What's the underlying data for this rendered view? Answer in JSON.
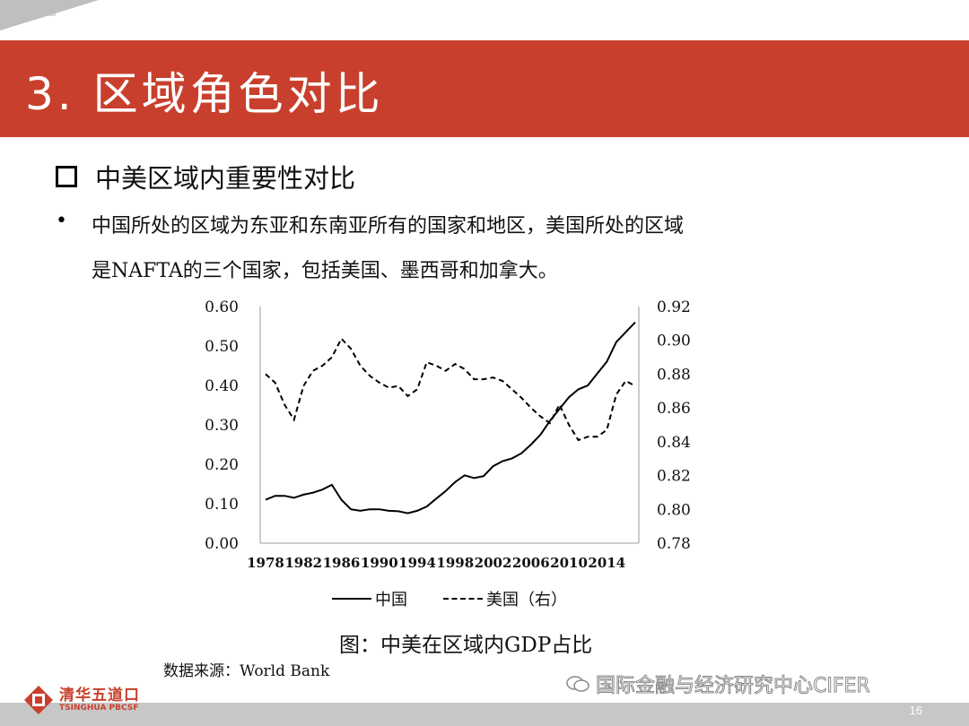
{
  "slide": {
    "title": "3. 区域角色对比",
    "heading": "中美区域内重要性对比",
    "bullet_line1": "中国所处的区域为东亚和东南亚所有的国家和地区，美国所处的区域",
    "bullet_line2": "是NAFTA的三个国家，包括美国、墨西哥和加拿大。",
    "caption": "图：中美在区域内GDP占比",
    "source": "数据来源：World Bank",
    "watermark": "国际金融与经济研究中心CIFER",
    "page_number": "16",
    "logo_cn": "清华五道口",
    "logo_en": "TSINGHUA PBCSF",
    "colors": {
      "title_bar": "#c8402d",
      "footer": "#c7c7c7"
    }
  },
  "chart_data": {
    "type": "line",
    "title": "",
    "xlabel": "",
    "ylabel": "",
    "x_ticks": [
      "1978",
      "1982",
      "1986",
      "1990",
      "1994",
      "1998",
      "2002",
      "2006",
      "2010",
      "2014"
    ],
    "y_left": {
      "ticks": [
        "0.00",
        "0.10",
        "0.20",
        "0.30",
        "0.40",
        "0.50",
        "0.60"
      ],
      "lim": [
        0,
        0.6
      ]
    },
    "y_right": {
      "ticks": [
        "0.78",
        "0.80",
        "0.82",
        "0.84",
        "0.86",
        "0.88",
        "0.90",
        "0.92"
      ],
      "lim": [
        0.78,
        0.92
      ]
    },
    "legend_position": "bottom",
    "grid": false,
    "x": [
      1978,
      1979,
      1980,
      1981,
      1982,
      1983,
      1984,
      1985,
      1986,
      1987,
      1988,
      1989,
      1990,
      1991,
      1992,
      1993,
      1994,
      1995,
      1996,
      1997,
      1998,
      1999,
      2000,
      2001,
      2002,
      2003,
      2004,
      2005,
      2006,
      2007,
      2008,
      2009,
      2010,
      2011,
      2012,
      2013,
      2014,
      2015,
      2016,
      2017
    ],
    "series": [
      {
        "name": "中国",
        "axis": "left",
        "style": "solid",
        "values": [
          0.11,
          0.12,
          0.12,
          0.115,
          0.123,
          0.128,
          0.136,
          0.148,
          0.11,
          0.086,
          0.082,
          0.086,
          0.086,
          0.082,
          0.081,
          0.076,
          0.082,
          0.093,
          0.113,
          0.132,
          0.155,
          0.172,
          0.165,
          0.17,
          0.195,
          0.208,
          0.215,
          0.228,
          0.25,
          0.275,
          0.31,
          0.34,
          0.37,
          0.39,
          0.4,
          0.43,
          0.46,
          0.51,
          0.535,
          0.56
        ]
      },
      {
        "name": "美国（右）",
        "axis": "right",
        "style": "dashed",
        "values": [
          0.88,
          0.875,
          0.862,
          0.853,
          0.873,
          0.882,
          0.885,
          0.89,
          0.901,
          0.895,
          0.885,
          0.879,
          0.875,
          0.872,
          0.873,
          0.867,
          0.871,
          0.887,
          0.885,
          0.882,
          0.886,
          0.883,
          0.877,
          0.877,
          0.878,
          0.876,
          0.871,
          0.866,
          0.86,
          0.855,
          0.851,
          0.862,
          0.85,
          0.841,
          0.843,
          0.843,
          0.847,
          0.868,
          0.876,
          0.873
        ]
      }
    ]
  }
}
